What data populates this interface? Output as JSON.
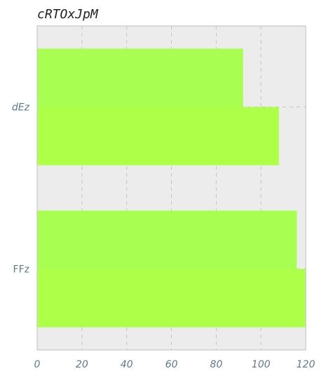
{
  "chart_data": {
    "type": "bar",
    "orientation": "horizontal",
    "title": "cRTOxJpM",
    "categories": [
      "dEz",
      "FFz"
    ],
    "series": [
      {
        "values": [
          92,
          116
        ],
        "color": "#a8ff52"
      },
      {
        "values": [
          108,
          120
        ],
        "color": "#adff47"
      }
    ],
    "xticks": [
      "0",
      "20",
      "40",
      "60",
      "80",
      "100",
      "120"
    ],
    "xlim": [
      0,
      120
    ],
    "grid": true,
    "background": "#ececec",
    "legend": "none"
  }
}
